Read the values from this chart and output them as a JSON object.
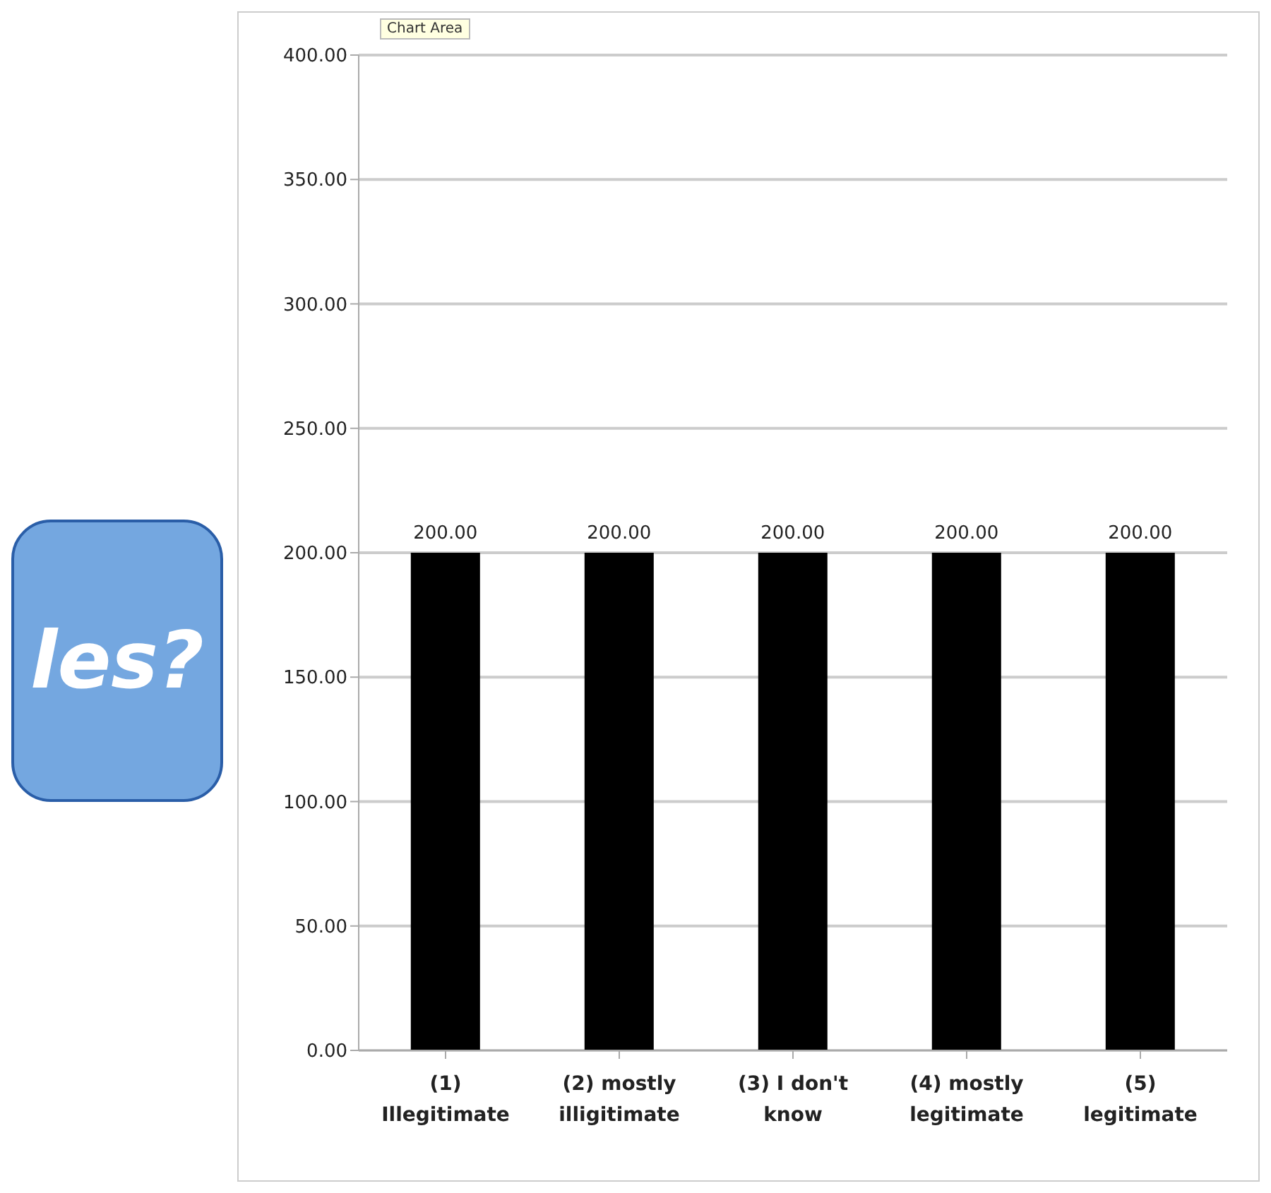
{
  "chart_data": {
    "type": "bar",
    "categories": [
      "(1) Illegitimate",
      "(2) mostly illigitimate",
      "(3) I don't know",
      "(4) mostly legitimate",
      "(5) legitimate"
    ],
    "values": [
      200,
      200,
      200,
      200,
      200
    ],
    "color": "#000000",
    "value_labels": [
      "200.00",
      "200.00",
      "200.00",
      "200.00",
      "200.00"
    ],
    "ylim": [
      0,
      400
    ],
    "yticks": [
      {
        "value": 0,
        "label": "0.00"
      },
      {
        "value": 50,
        "label": "50.00"
      },
      {
        "value": 100,
        "label": "100.00"
      },
      {
        "value": 150,
        "label": "150.00"
      },
      {
        "value": 200,
        "label": "200.00"
      },
      {
        "value": 250,
        "label": "250.00"
      },
      {
        "value": 300,
        "label": "300.00"
      },
      {
        "value": 350,
        "label": "350.00"
      },
      {
        "value": 400,
        "label": "400.00"
      }
    ],
    "grid": "y",
    "annotations": [
      "les?",
      "Chart Area"
    ]
  }
}
